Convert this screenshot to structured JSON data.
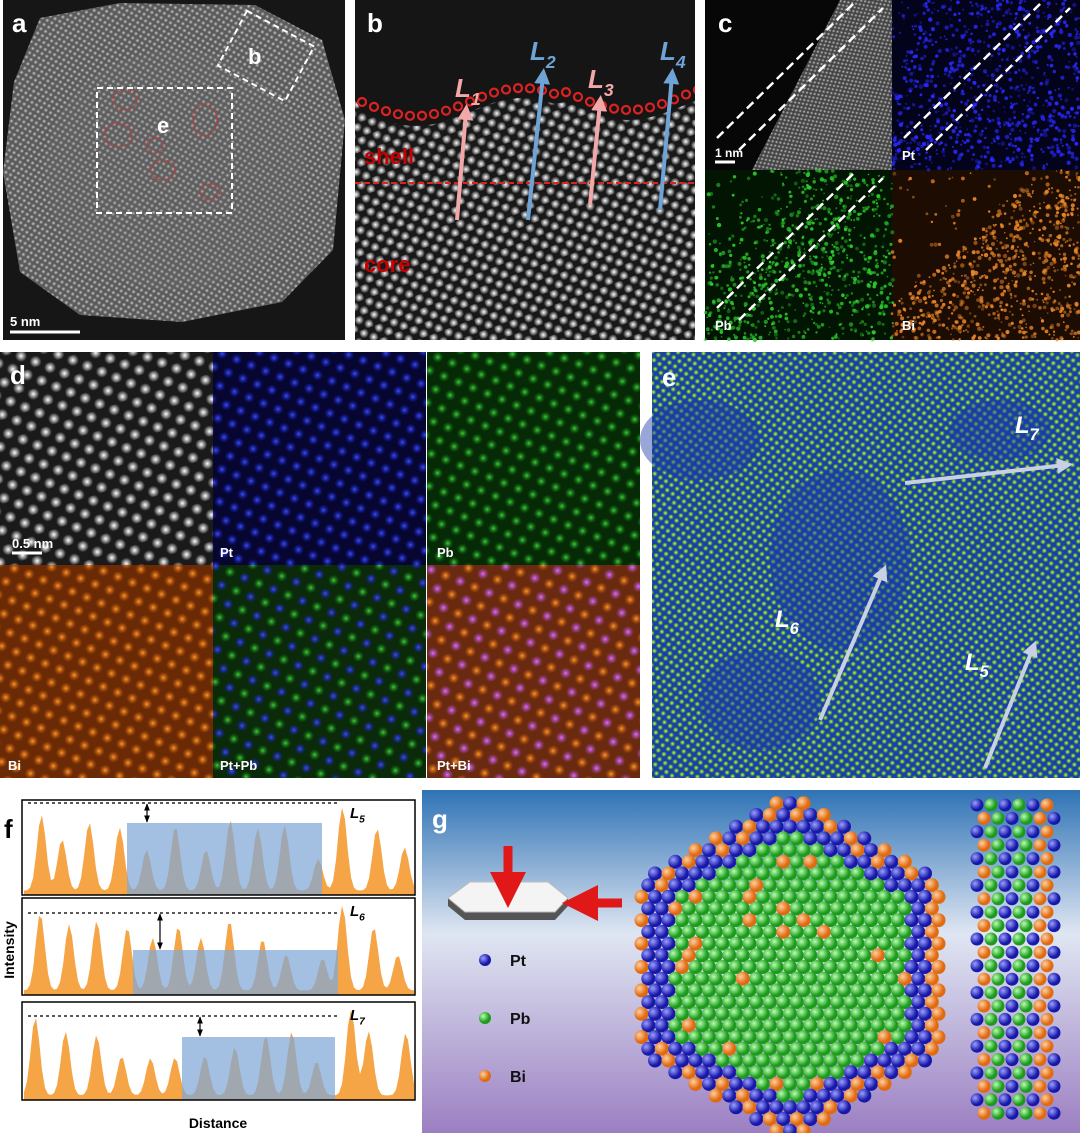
{
  "panels": [
    {
      "label": "a",
      "scale_bar": "5 nm",
      "box_labels": [
        "b",
        "e"
      ]
    },
    {
      "label": "b",
      "regions": [
        "shell",
        "core"
      ],
      "lines": [
        {
          "letter": "L",
          "sub": "1"
        },
        {
          "letter": "L",
          "sub": "2"
        },
        {
          "letter": "L",
          "sub": "3"
        },
        {
          "letter": "L",
          "sub": "4"
        }
      ]
    },
    {
      "label": "c",
      "scale_bar": "1 nm",
      "maps": [
        "Pt",
        "Pb",
        "Bi"
      ]
    },
    {
      "label": "d",
      "scale_bar": "0.5 nm",
      "maps": [
        "Pt",
        "Pb",
        "Bi",
        "Pt+Pb",
        "Pt+Bi"
      ]
    },
    {
      "label": "e",
      "lines": [
        {
          "letter": "L",
          "sub": "7"
        },
        {
          "letter": "L",
          "sub": "6"
        },
        {
          "letter": "L",
          "sub": "5"
        }
      ]
    },
    {
      "label": "f",
      "y_label": "Intensity",
      "x_label": "Distance",
      "profiles": [
        {
          "letter": "L",
          "sub": "5"
        },
        {
          "letter": "L",
          "sub": "6"
        },
        {
          "letter": "L",
          "sub": "7"
        }
      ]
    },
    {
      "label": "g",
      "legend": [
        "Pt",
        "Pb",
        "Bi"
      ]
    }
  ]
}
